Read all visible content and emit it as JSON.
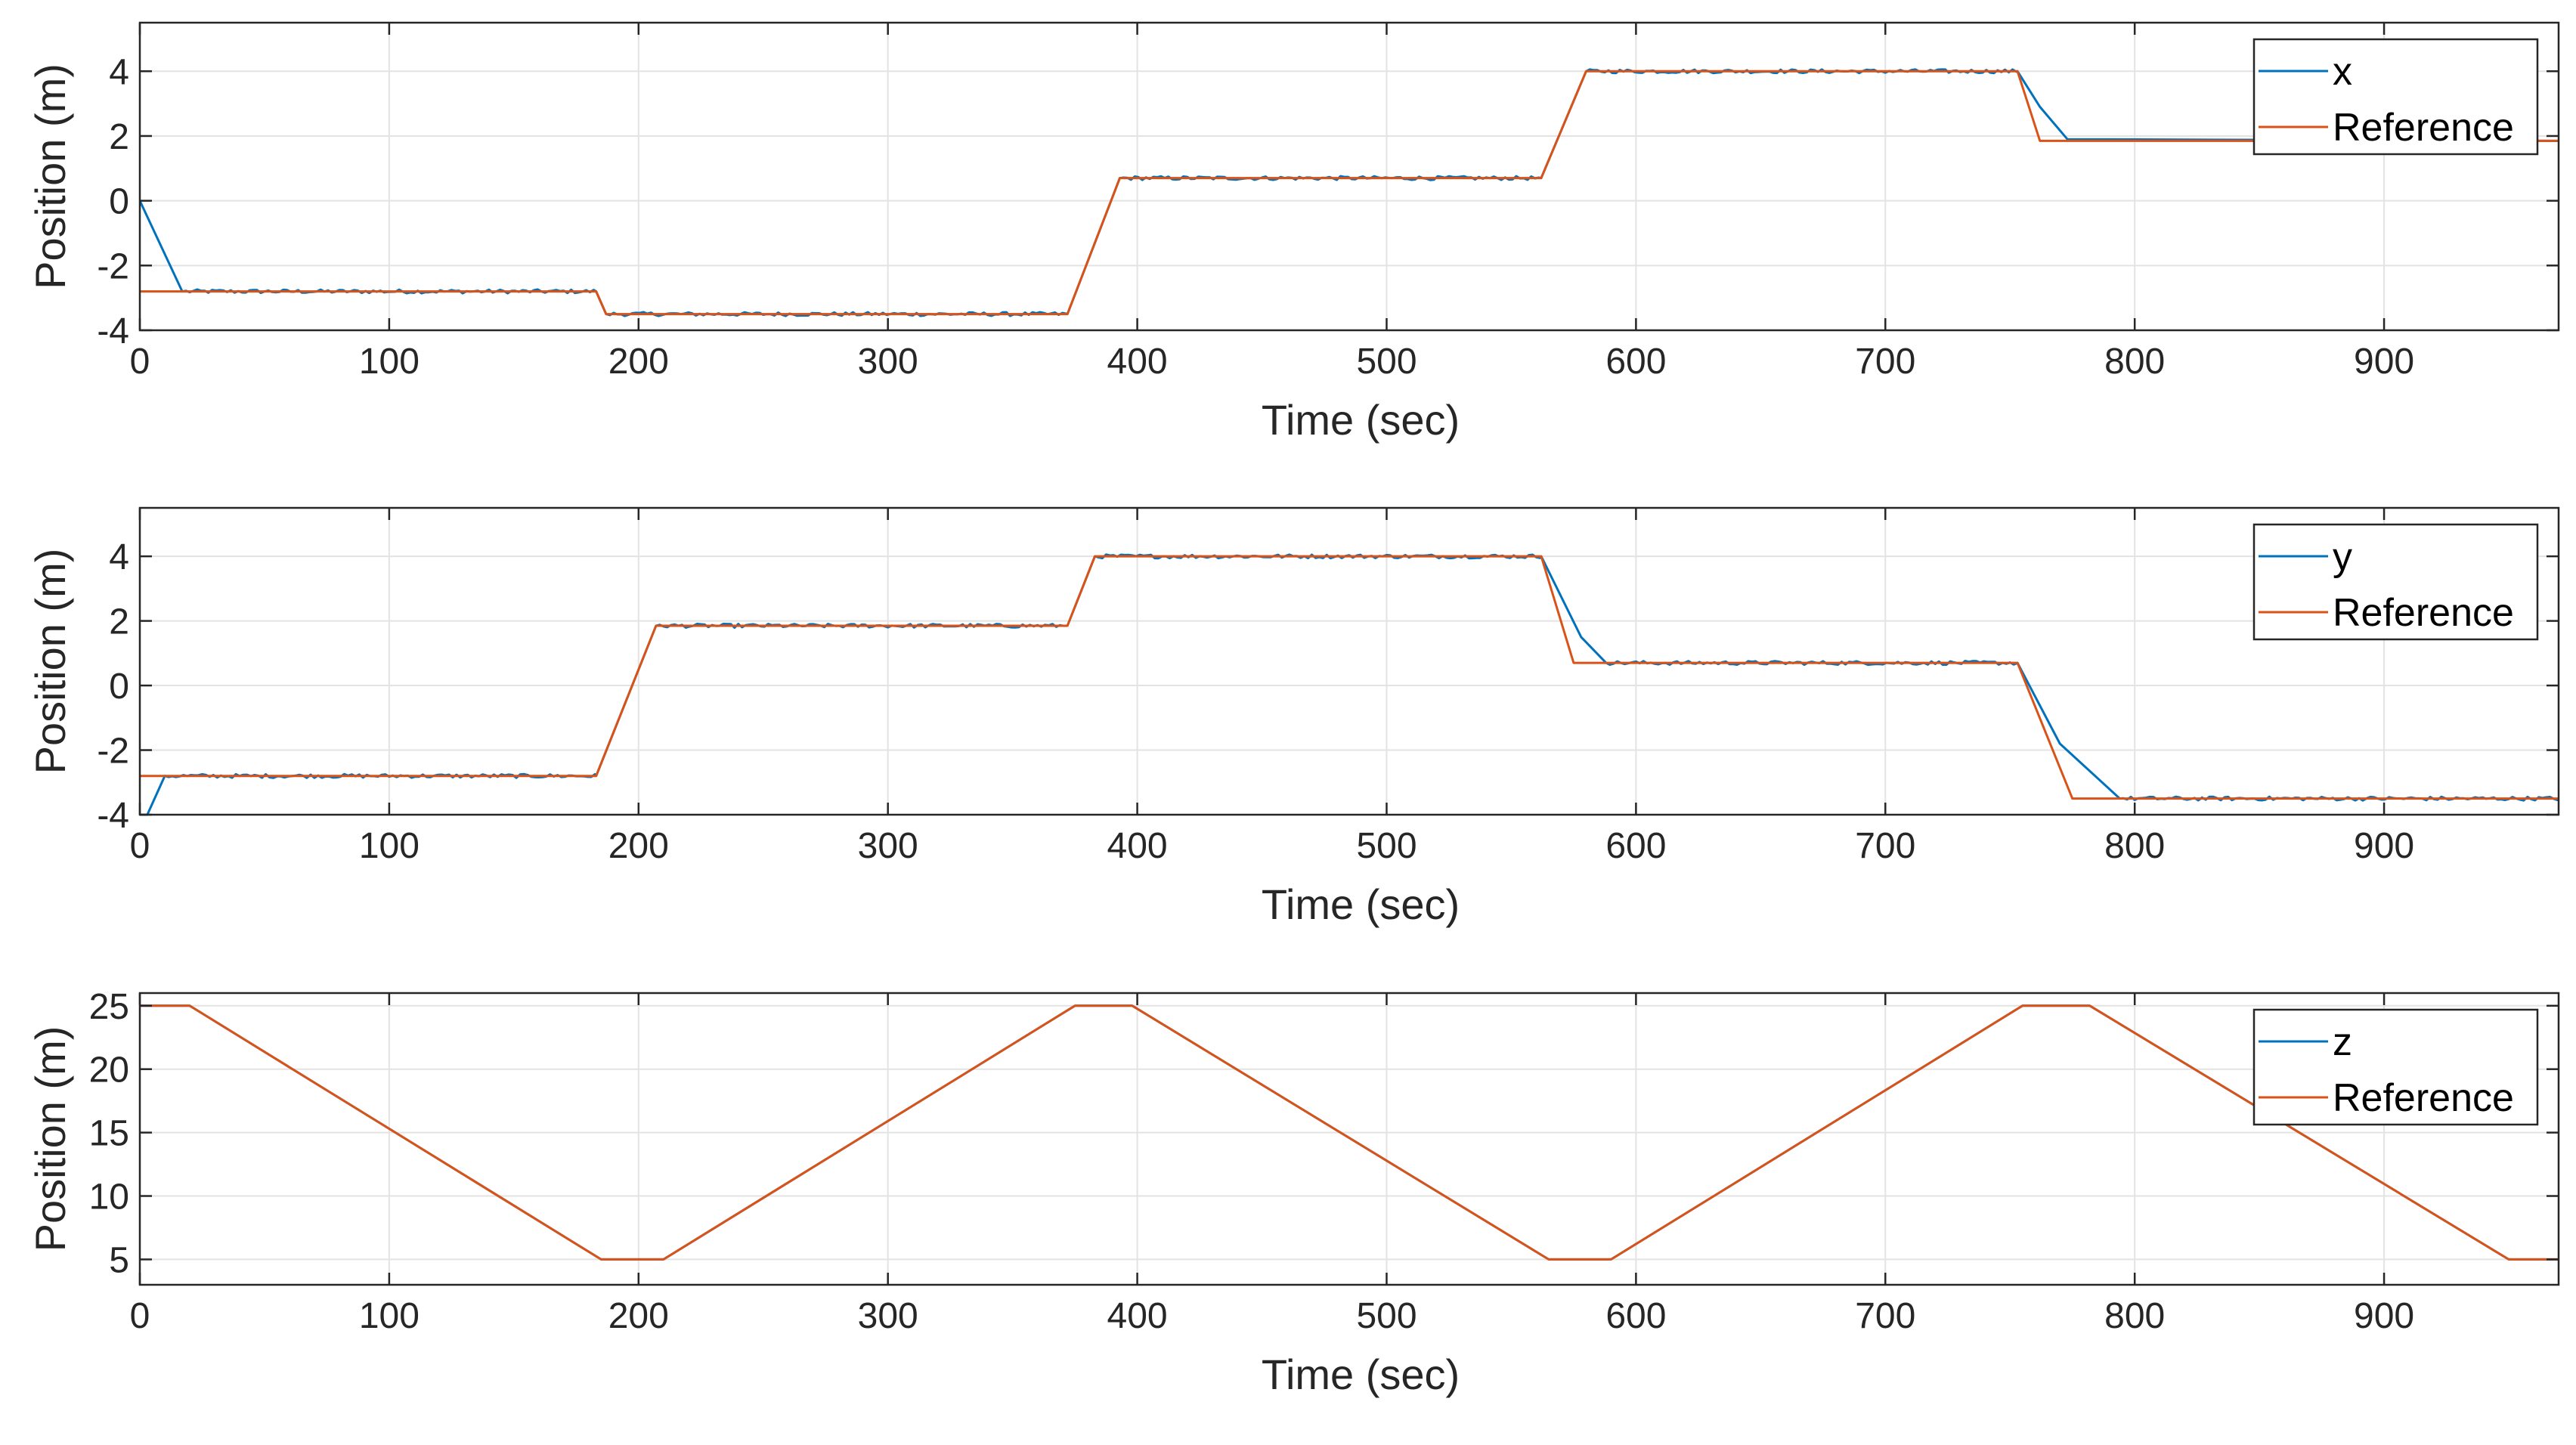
{
  "chart_data": [
    {
      "type": "line",
      "xlabel": "Time (sec)",
      "ylabel": "Position (m)",
      "xlim": [
        0,
        970
      ],
      "ylim": [
        -4,
        5.5
      ],
      "xticks": [
        0,
        100,
        200,
        300,
        400,
        500,
        600,
        700,
        800,
        900
      ],
      "yticks": [
        -4,
        -2,
        0,
        2,
        4
      ],
      "grid": true,
      "legend_position": "top-right",
      "series": [
        {
          "name": "x",
          "color": "#0072BD",
          "noisy": true,
          "x": [
            0,
            17,
            183,
            187,
            372,
            393,
            562,
            580,
            753,
            762,
            773,
            970
          ],
          "y": [
            0,
            -2.8,
            -2.8,
            -3.5,
            -3.5,
            0.7,
            0.7,
            4,
            4,
            2.9,
            1.9,
            1.85
          ]
        },
        {
          "name": "Reference",
          "color": "#D95319",
          "noisy": false,
          "x": [
            0,
            183,
            187,
            372,
            393,
            562,
            580,
            753,
            762,
            970
          ],
          "y": [
            -2.8,
            -2.8,
            -3.5,
            -3.5,
            0.7,
            0.7,
            4,
            4,
            1.85,
            1.85
          ]
        }
      ]
    },
    {
      "type": "line",
      "xlabel": "Time (sec)",
      "ylabel": "Position (m)",
      "xlim": [
        0,
        970
      ],
      "ylim": [
        -4,
        5.5
      ],
      "xticks": [
        0,
        100,
        200,
        300,
        400,
        500,
        600,
        700,
        800,
        900
      ],
      "yticks": [
        -4,
        -2,
        0,
        2,
        4
      ],
      "grid": true,
      "legend_position": "top-right",
      "series": [
        {
          "name": "y",
          "color": "#0072BD",
          "noisy": true,
          "x": [
            0,
            3,
            10,
            183,
            207,
            372,
            383,
            562,
            578,
            588,
            753,
            770,
            794,
            970
          ],
          "y": [
            -4,
            -4,
            -2.8,
            -2.8,
            1.85,
            1.85,
            4,
            4,
            1.5,
            0.7,
            0.7,
            -1.8,
            -3.5,
            -3.5
          ]
        },
        {
          "name": "Reference",
          "color": "#D95319",
          "noisy": false,
          "x": [
            0,
            183,
            207,
            372,
            383,
            562,
            575,
            753,
            775,
            970
          ],
          "y": [
            -2.8,
            -2.8,
            1.85,
            1.85,
            4,
            4,
            0.7,
            0.7,
            -3.5,
            -3.5
          ]
        }
      ]
    },
    {
      "type": "line",
      "xlabel": "Time (sec)",
      "ylabel": "Position (m)",
      "xlim": [
        0,
        970
      ],
      "ylim": [
        3,
        26
      ],
      "xticks": [
        0,
        100,
        200,
        300,
        400,
        500,
        600,
        700,
        800,
        900
      ],
      "yticks": [
        5,
        10,
        15,
        20,
        25
      ],
      "grid": true,
      "legend_position": "top-right",
      "series": [
        {
          "name": "z",
          "color": "#0072BD",
          "noisy": false,
          "x": [
            0,
            20,
            185,
            210,
            375,
            398,
            565,
            590,
            755,
            782,
            950,
            970
          ],
          "y": [
            25,
            25,
            5,
            5,
            25,
            25,
            5,
            5,
            25,
            25,
            5,
            5
          ]
        },
        {
          "name": "Reference",
          "color": "#D95319",
          "noisy": false,
          "x": [
            0,
            20,
            185,
            210,
            375,
            398,
            565,
            590,
            755,
            782,
            950,
            970
          ],
          "y": [
            25,
            25,
            5,
            5,
            25,
            25,
            5,
            5,
            25,
            25,
            5,
            5
          ]
        }
      ]
    }
  ]
}
